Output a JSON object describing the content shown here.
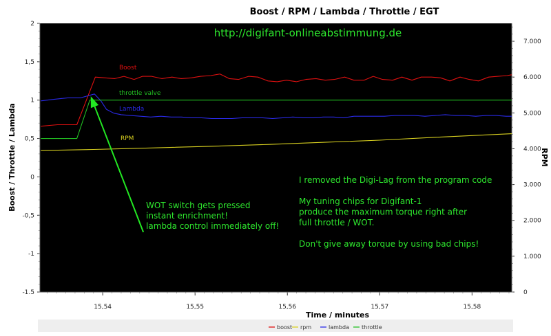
{
  "chart_data": {
    "type": "line",
    "title": "Boost / RPM / Lambda / Throttle / EGT",
    "xlabel": "Time / minutes",
    "ylabel_left": "Boost / Throttle / Lambda",
    "ylabel_right": "RPM",
    "url": "http://digifant-onlineabstimmung.de",
    "xlim": [
      15.5332,
      15.5843
    ],
    "ylim_left": [
      -1.5,
      2
    ],
    "ylim_right": [
      0,
      7500
    ],
    "x_ticks": [
      15.54,
      15.55,
      15.56,
      15.57,
      15.58
    ],
    "x_tick_labels": [
      "15,54",
      "15,55",
      "15,56",
      "15,57",
      "15,58"
    ],
    "y_left_ticks": [
      -1.5,
      -1,
      -0.5,
      0,
      0.5,
      1,
      1.5,
      2
    ],
    "y_left_tick_labels": [
      "-1.5",
      "-1",
      "-0,5",
      "0",
      "0,5",
      "1",
      "1,5",
      "2"
    ],
    "y_right_ticks": [
      0,
      1000,
      2000,
      3000,
      4000,
      5000,
      6000,
      7000
    ],
    "y_right_tick_labels": [
      "0",
      "1.000",
      "2.000",
      "3.000",
      "4.000",
      "5.000",
      "6.000",
      "7.000"
    ],
    "background": "#000000",
    "series": [
      {
        "name": "boost",
        "axis": "left",
        "color": "#e01010",
        "label": "Boost",
        "x": [
          15.5333,
          15.5351,
          15.5372,
          15.5392,
          15.5413,
          15.5423,
          15.5434,
          15.5443,
          15.5453,
          15.5464,
          15.5475,
          15.5485,
          15.5496,
          15.5506,
          15.5517,
          15.5527,
          15.5537,
          15.5547,
          15.5558,
          15.5568,
          15.5579,
          15.5589,
          15.5599,
          15.561,
          15.562,
          15.5631,
          15.5641,
          15.5651,
          15.5662,
          15.5672,
          15.5683,
          15.5693,
          15.5703,
          15.5714,
          15.5724,
          15.5735,
          15.5745,
          15.5756,
          15.5766,
          15.5776,
          15.5787,
          15.5797,
          15.5807,
          15.5818,
          15.5828,
          15.5838,
          15.5843
        ],
        "y": [
          0.66,
          0.68,
          0.68,
          1.3,
          1.28,
          1.31,
          1.27,
          1.31,
          1.31,
          1.28,
          1.3,
          1.28,
          1.29,
          1.31,
          1.32,
          1.34,
          1.28,
          1.27,
          1.31,
          1.3,
          1.25,
          1.24,
          1.26,
          1.24,
          1.27,
          1.28,
          1.26,
          1.27,
          1.3,
          1.26,
          1.26,
          1.31,
          1.27,
          1.26,
          1.3,
          1.26,
          1.3,
          1.3,
          1.29,
          1.25,
          1.3,
          1.27,
          1.25,
          1.3,
          1.31,
          1.32,
          1.33
        ]
      },
      {
        "name": "rpm",
        "axis": "right",
        "color": "#d8d020",
        "label": "RPM",
        "x": [
          15.5333,
          15.539,
          15.545,
          15.552,
          15.558,
          15.564,
          15.57,
          15.576,
          15.5843
        ],
        "y": [
          3950,
          3980,
          4020,
          4070,
          4120,
          4180,
          4240,
          4320,
          4420
        ]
      },
      {
        "name": "lambda",
        "axis": "left",
        "color": "#2a2ae8",
        "label": "Lambda",
        "x": [
          15.5333,
          15.5347,
          15.5362,
          15.5376,
          15.5391,
          15.5398,
          15.5404,
          15.5412,
          15.542,
          15.543,
          15.5441,
          15.5452,
          15.5463,
          15.5474,
          15.5485,
          15.5496,
          15.5507,
          15.5518,
          15.5529,
          15.554,
          15.5551,
          15.5562,
          15.5573,
          15.5584,
          15.5595,
          15.5606,
          15.5617,
          15.5628,
          15.5639,
          15.565,
          15.5661,
          15.5672,
          15.5683,
          15.5694,
          15.5705,
          15.5716,
          15.5727,
          15.5738,
          15.5749,
          15.576,
          15.5771,
          15.5782,
          15.5793,
          15.5804,
          15.5815,
          15.5826,
          15.5837,
          15.5843
        ],
        "y": [
          0.99,
          1.01,
          1.03,
          1.03,
          1.08,
          0.99,
          0.88,
          0.83,
          0.81,
          0.8,
          0.79,
          0.78,
          0.79,
          0.78,
          0.78,
          0.77,
          0.77,
          0.76,
          0.76,
          0.76,
          0.77,
          0.77,
          0.77,
          0.76,
          0.77,
          0.78,
          0.77,
          0.77,
          0.78,
          0.78,
          0.77,
          0.79,
          0.79,
          0.79,
          0.79,
          0.8,
          0.8,
          0.8,
          0.79,
          0.8,
          0.81,
          0.8,
          0.8,
          0.79,
          0.8,
          0.8,
          0.79,
          0.79
        ]
      },
      {
        "name": "throttle",
        "axis": "left",
        "color": "#22c022",
        "label": "throttle valve",
        "x": [
          15.5333,
          15.5372,
          15.5386,
          15.5843
        ],
        "y": [
          0.5,
          0.5,
          1.0,
          1.0
        ]
      }
    ],
    "series_labels": [
      {
        "series": "boost",
        "text": "Boost"
      },
      {
        "series": "throttle",
        "text": "throttle valve"
      },
      {
        "series": "lambda",
        "text": "Lambda"
      },
      {
        "series": "rpm",
        "text": "RPM"
      }
    ],
    "annotations": [
      {
        "id": "wot",
        "lines": [
          "WOT switch gets pressed",
          "instant enrichment!",
          "lambda control immediately off!"
        ],
        "arrow_from": {
          "x": 15.5444,
          "y": -0.72
        },
        "arrow_to": {
          "x": 15.5387,
          "y": 1.05
        }
      },
      {
        "id": "notes",
        "lines": [
          "I removed the Digi-Lag from the program code",
          "",
          "My tuning chips for Digifant-1",
          "produce the maximum torque right after",
          "full throttle / WOT.",
          "",
          "Don't give away torque by using bad chips!"
        ]
      }
    ],
    "legend": {
      "position": "bottom",
      "items": [
        {
          "label": "boost",
          "color": "#e01010"
        },
        {
          "label": "rpm",
          "color": "#d8d020"
        },
        {
          "label": "lambda",
          "color": "#2a2ae8"
        },
        {
          "label": "throttle",
          "color": "#22c022"
        }
      ]
    }
  }
}
